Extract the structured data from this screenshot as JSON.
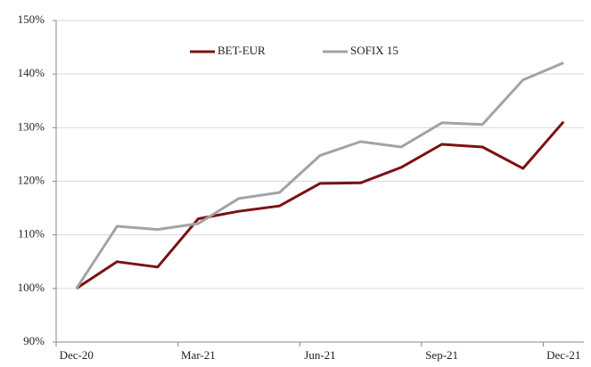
{
  "chart_data": {
    "type": "line",
    "categories": [
      "Dec-20",
      null,
      null,
      "Mar-21",
      null,
      null,
      "Jun-21",
      null,
      null,
      "Sep-21",
      null,
      null,
      "Dec-21"
    ],
    "series": [
      {
        "name": "BET-EUR",
        "color": "#7b1114",
        "values": [
          100,
          105.0,
          104.0,
          113.0,
          114.4,
          115.4,
          119.6,
          119.7,
          122.6,
          126.9,
          126.4,
          122.4,
          131.1
        ]
      },
      {
        "name": "SOFIX 15",
        "color": "#a3a3a3",
        "values": [
          100,
          111.6,
          111.0,
          112.1,
          116.8,
          117.9,
          124.8,
          127.4,
          126.4,
          130.9,
          130.6,
          138.9,
          142.1
        ]
      }
    ],
    "ylim": [
      90,
      150
    ],
    "yticks": [
      {
        "value": 90,
        "label": "90%"
      },
      {
        "value": 100,
        "label": "100%"
      },
      {
        "value": 110,
        "label": "110%"
      },
      {
        "value": 120,
        "label": "120%"
      },
      {
        "value": 130,
        "label": "130%"
      },
      {
        "value": 140,
        "label": "140%"
      },
      {
        "value": 150,
        "label": "150%"
      }
    ],
    "grid": true,
    "legend": "top"
  }
}
